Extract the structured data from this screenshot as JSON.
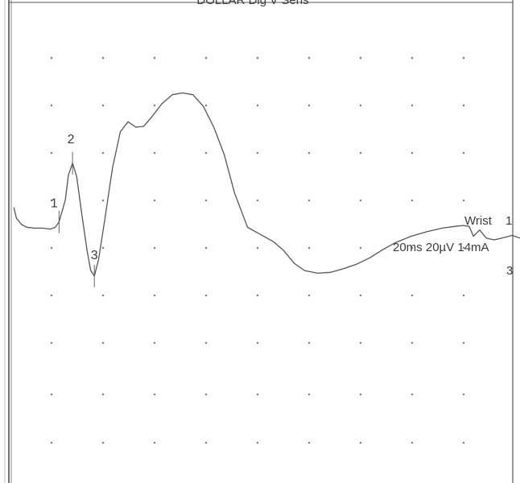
{
  "chart_data": {
    "type": "line",
    "title": "DOLLAR Dig V Sens",
    "xlabel": "",
    "ylabel": "",
    "grid": true,
    "colors": {
      "trace": "#555555",
      "grid": "#777777",
      "frame": "#555555",
      "text": "#3a3a3a"
    },
    "trace_label": {
      "site": "Wrist",
      "index": "1",
      "settings": "20ms 20µV 14mA",
      "channel": "3"
    },
    "series": [
      {
        "points": [
          [
            0.5,
            36
          ],
          [
            1.0,
            24
          ],
          [
            2.0,
            17
          ],
          [
            3.0,
            14
          ],
          [
            4.5,
            13
          ],
          [
            6.0,
            13
          ],
          [
            7.5,
            12
          ],
          [
            8.5,
            14
          ],
          [
            9.2,
            20
          ],
          [
            9.7,
            30
          ],
          [
            10.4,
            44
          ],
          [
            11.0,
            72
          ],
          [
            11.8,
            85
          ],
          [
            12.6,
            70
          ],
          [
            13.6,
            28
          ],
          [
            14.6,
            -12
          ],
          [
            15.3,
            -34
          ],
          [
            16.0,
            -40
          ],
          [
            16.8,
            -22
          ],
          [
            18.0,
            22
          ],
          [
            19.5,
            80
          ],
          [
            21.0,
            120
          ],
          [
            22.5,
            131
          ],
          [
            24.0,
            125
          ],
          [
            25.5,
            126
          ],
          [
            27.0,
            136
          ],
          [
            29.0,
            151
          ],
          [
            31.0,
            161
          ],
          [
            33.0,
            163
          ],
          [
            35.0,
            161
          ],
          [
            37.0,
            148
          ],
          [
            39.0,
            125
          ],
          [
            41.0,
            95
          ],
          [
            43.0,
            52
          ],
          [
            45.5,
            14
          ],
          [
            48.0,
            6
          ],
          [
            50.5,
            -2
          ],
          [
            52.5,
            -12
          ],
          [
            54.5,
            -26
          ],
          [
            56.5,
            -34
          ],
          [
            59.0,
            -37
          ],
          [
            61.5,
            -36
          ],
          [
            64.0,
            -32
          ],
          [
            66.5,
            -27
          ],
          [
            69.0,
            -20
          ],
          [
            71.5,
            -11
          ],
          [
            74.0,
            -3
          ],
          [
            77.0,
            4
          ],
          [
            80.0,
            9
          ],
          [
            83.0,
            13
          ],
          [
            85.5,
            15
          ],
          [
            87.0,
            16
          ],
          [
            88.2,
            15
          ],
          [
            89.0,
            4
          ],
          [
            90.2,
            11
          ],
          [
            91.5,
            2
          ],
          [
            93.0,
            0
          ],
          [
            94.5,
            2
          ],
          [
            96.5,
            5
          ],
          [
            98.0,
            2
          ]
        ]
      }
    ],
    "markers": [
      {
        "label": "1",
        "x": 9.2
      },
      {
        "label": "2",
        "x": 11.8
      },
      {
        "label": "3",
        "x": 16.0
      }
    ]
  }
}
